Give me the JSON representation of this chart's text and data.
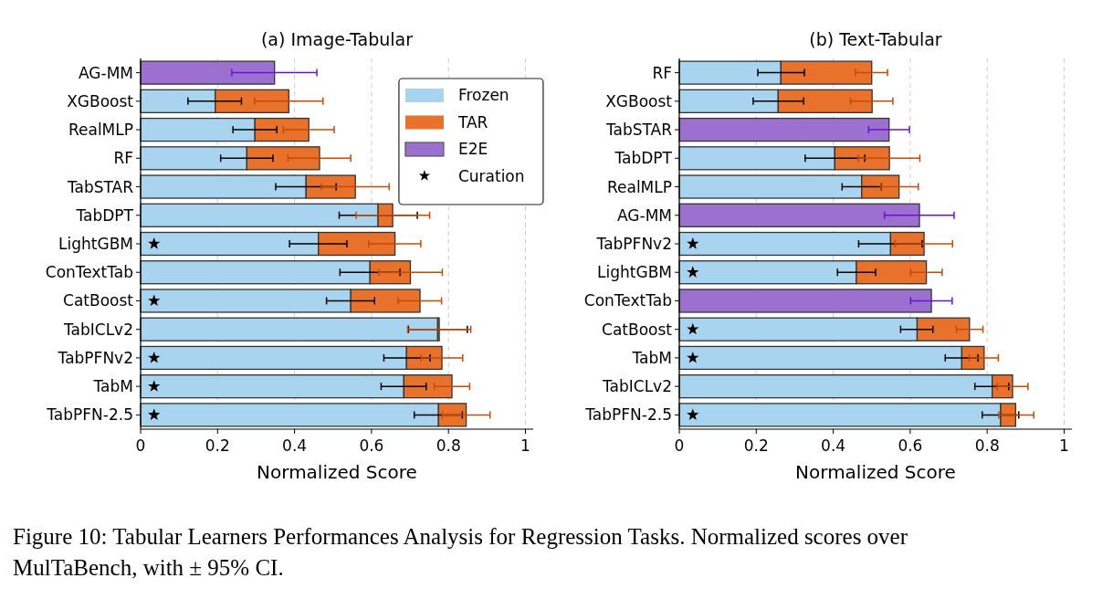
{
  "chart_data": [
    {
      "type": "bar",
      "orientation": "horizontal",
      "stacked": true,
      "title": "(a) Image-Tabular",
      "xlabel": "Normalized Score",
      "categories": [
        "AG-MM",
        "XGBoost",
        "RealMLP",
        "RF",
        "TabSTAR",
        "TabDPT",
        "LightGBM",
        "ConTextTab",
        "CatBoost",
        "TabICLv2",
        "TabPFNv2",
        "TabM",
        "TabPFN-2.5"
      ],
      "series": [
        {
          "name": "Frozen",
          "color": "#a8d4f0",
          "values": [
            null,
            0.194,
            0.297,
            0.276,
            0.43,
            0.617,
            0.462,
            0.596,
            0.546,
            0.772,
            0.691,
            0.684,
            0.774
          ],
          "errors": [
            null,
            [
              0.123,
              0.262
            ],
            [
              0.24,
              0.354
            ],
            [
              0.208,
              0.344
            ],
            [
              0.351,
              0.508
            ],
            [
              0.516,
              0.719
            ],
            [
              0.387,
              0.536
            ],
            [
              0.518,
              0.674
            ],
            [
              0.483,
              0.608
            ],
            [
              0.696,
              0.849
            ],
            [
              0.632,
              0.752
            ],
            [
              0.625,
              0.742
            ],
            [
              0.711,
              0.836
            ]
          ]
        },
        {
          "name": "TAR",
          "color": "#e8722c",
          "values": [
            null,
            0.191,
            0.14,
            0.189,
            0.128,
            0.038,
            0.199,
            0.105,
            0.18,
            0.004,
            0.092,
            0.125,
            0.072
          ],
          "errors": [
            null,
            [
              0.296,
              0.474
            ],
            [
              0.371,
              0.503
            ],
            [
              0.383,
              0.546
            ],
            [
              0.47,
              0.646
            ],
            [
              0.56,
              0.751
            ],
            [
              0.593,
              0.728
            ],
            [
              0.619,
              0.784
            ],
            [
              0.669,
              0.782
            ],
            [
              0.694,
              0.858
            ],
            [
              0.729,
              0.837
            ],
            [
              0.763,
              0.855
            ],
            [
              0.784,
              0.908
            ]
          ]
        },
        {
          "name": "E2E",
          "color": "#9b70cf",
          "values": [
            0.348,
            null,
            null,
            null,
            null,
            null,
            null,
            null,
            null,
            null,
            null,
            null,
            null
          ],
          "errors": [
            [
              0.237,
              0.458
            ],
            null,
            null,
            null,
            null,
            null,
            null,
            null,
            null,
            null,
            null,
            null,
            null
          ]
        },
        {
          "name": "Curation",
          "type": "scatter",
          "marker": "star",
          "color": "#000000",
          "values": [
            null,
            null,
            null,
            null,
            null,
            null,
            0.035,
            null,
            0.035,
            null,
            0.035,
            0.035,
            0.035
          ]
        }
      ],
      "xlim": [
        0,
        1.02
      ],
      "xticks": [
        0,
        0.2,
        0.4,
        0.6,
        0.8,
        1
      ],
      "grid": "x",
      "legend": "top right",
      "annotations": [
        "Figure 10: Tabular Learners Performances Analysis for Regression Tasks. Normalized scores over MulTaBench, with ± 95% CI."
      ]
    },
    {
      "type": "bar",
      "orientation": "horizontal",
      "stacked": true,
      "title": "(b) Text-Tabular",
      "xlabel": "Normalized Score",
      "categories": [
        "RF",
        "XGBoost",
        "TabSTAR",
        "TabDPT",
        "RealMLP",
        "AG-MM",
        "TabPFNv2",
        "LightGBM",
        "ConTextTab",
        "CatBoost",
        "TabM",
        "TabICLv2",
        "TabPFN-2.5"
      ],
      "series": [
        {
          "color": "#a8d4f0",
          "values": [
            0.264,
            0.257,
            null,
            0.404,
            0.474,
            null,
            0.549,
            0.46,
            null,
            0.618,
            0.734,
            0.813,
            0.835
          ],
          "errors": [
            [
              0.204,
              0.325
            ],
            [
              0.192,
              0.323
            ],
            null,
            [
              0.327,
              0.482
            ],
            [
              0.423,
              0.525
            ],
            null,
            [
              0.466,
              0.631
            ],
            [
              0.411,
              0.51
            ],
            null,
            [
              0.575,
              0.659
            ],
            [
              0.691,
              0.776
            ],
            [
              0.768,
              0.856
            ],
            [
              0.787,
              0.882
            ]
          ]
        },
        {
          "color": "#e8722c",
          "values": [
            0.236,
            0.244,
            null,
            0.142,
            0.097,
            null,
            0.087,
            0.182,
            null,
            0.136,
            0.058,
            0.053,
            0.039
          ],
          "errors": [
            [
              0.458,
              0.541
            ],
            [
              0.445,
              0.555
            ],
            null,
            [
              0.465,
              0.625
            ],
            [
              0.524,
              0.621
            ],
            null,
            [
              0.561,
              0.71
            ],
            [
              0.601,
              0.683
            ],
            null,
            [
              0.72,
              0.789
            ],
            [
              0.754,
              0.829
            ],
            [
              0.826,
              0.906
            ],
            [
              0.83,
              0.921
            ]
          ]
        },
        {
          "color": "#9b70cf",
          "values": [
            null,
            null,
            0.545,
            null,
            null,
            0.624,
            null,
            null,
            0.655,
            null,
            null,
            null,
            null
          ],
          "errors": [
            null,
            null,
            [
              0.492,
              0.598
            ],
            null,
            null,
            [
              0.533,
              0.714
            ],
            null,
            null,
            [
              0.601,
              0.709
            ],
            null,
            null,
            null,
            null
          ]
        },
        {
          "type": "scatter",
          "marker": "star",
          "color": "#000000",
          "values": [
            null,
            null,
            null,
            null,
            null,
            null,
            0.035,
            0.035,
            null,
            0.035,
            0.035,
            null,
            0.035
          ]
        }
      ],
      "xlim": [
        0,
        1.02
      ],
      "xticks": [
        0,
        0.2,
        0.4,
        0.6,
        0.8,
        1
      ],
      "grid": "x"
    }
  ]
}
